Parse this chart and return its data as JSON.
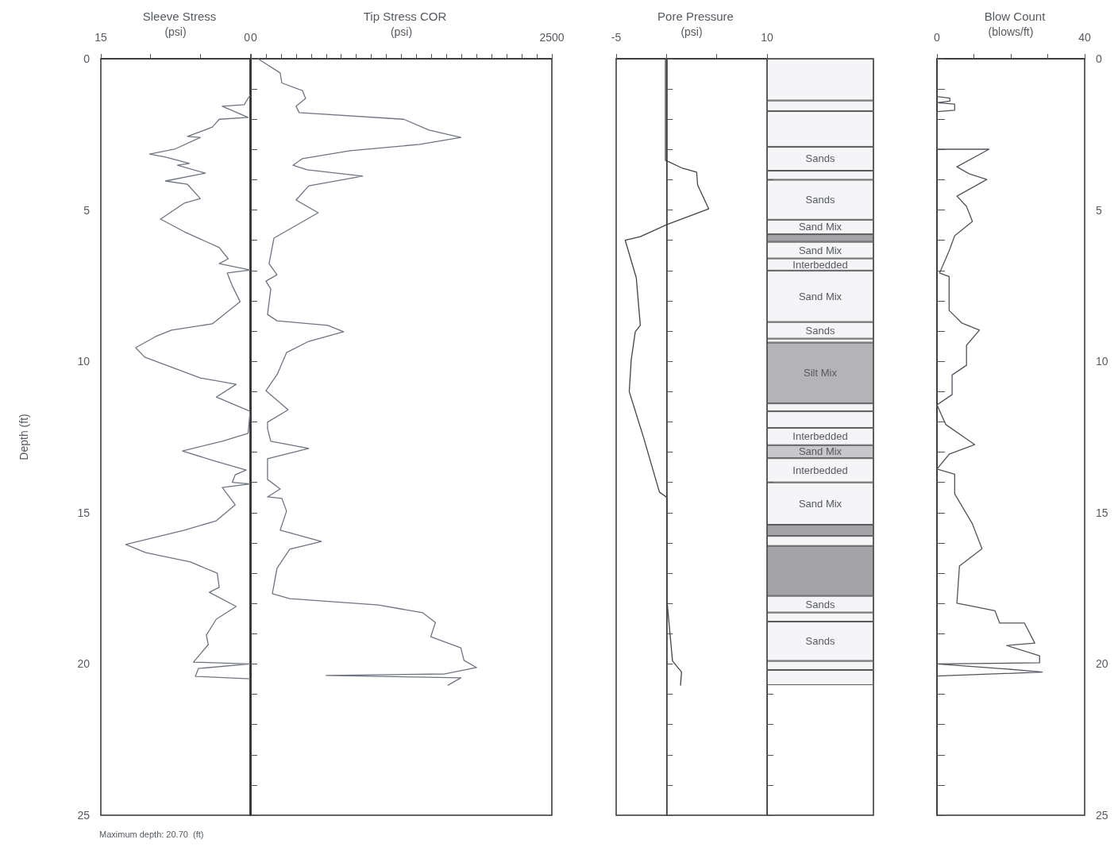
{
  "chart_data": [
    {
      "type": "line",
      "orientation": "horizontal",
      "title": "Sleeve Stress",
      "xlabel": "(psi)",
      "ylabel": "Depth (ft)",
      "color": "#6e7480",
      "marker": "none",
      "line_style": "solid",
      "x": [
        1.2,
        1.52,
        1.57,
        1.94,
        2.0,
        2.26,
        2.57,
        2.6,
        2.99,
        3.15,
        3.25,
        3.46,
        3.52,
        3.78,
        4.04,
        4.15,
        4.62,
        4.77,
        5.3,
        5.72,
        6.24,
        6.61,
        6.77,
        6.98,
        7.08,
        7.5,
        8.03,
        8.76,
        8.97,
        9.18,
        9.55,
        9.86,
        10.55,
        10.76,
        11.18,
        11.65,
        12.38,
        12.64,
        12.96,
        13.27,
        13.59,
        13.75,
        14.0,
        14.05,
        14.17,
        14.74,
        15.27,
        15.58,
        16.05,
        16.32,
        16.63,
        17.0,
        17.47,
        17.63,
        18.1,
        18.52,
        19.05,
        19.36,
        19.94,
        20.0,
        20.15,
        20.41,
        20.49
      ],
      "values": [
        0,
        0.6,
        2.8,
        0.2,
        3.1,
        3.8,
        6.3,
        5.0,
        7.6,
        10.1,
        8.5,
        6.1,
        7.3,
        4.5,
        8.5,
        6.3,
        5.0,
        6.6,
        9.0,
        6.6,
        3.1,
        2.2,
        3.1,
        0,
        2.3,
        1.8,
        1.0,
        3.8,
        7.9,
        9.5,
        11.5,
        10.6,
        5.0,
        1.4,
        3.4,
        0,
        0.2,
        2.8,
        6.8,
        3.8,
        0.4,
        1.5,
        1.8,
        0,
        2.8,
        1.5,
        3.4,
        6.6,
        12.5,
        10.5,
        6.0,
        3.3,
        3.1,
        4.1,
        1.4,
        3.4,
        4.4,
        4.2,
        5.7,
        0,
        5.2,
        5.5,
        0
      ],
      "xlim": [
        15,
        0
      ],
      "xticks": [
        15,
        {
          "value": 10,
          "label": null
        },
        {
          "value": 5,
          "label": null
        },
        0
      ],
      "ylim": [
        25,
        0
      ],
      "yticks": [
        0,
        {
          "value": 1,
          "label": null
        },
        {
          "value": 2,
          "label": null
        },
        {
          "value": 3,
          "label": null
        },
        {
          "value": 4,
          "label": null
        },
        5,
        {
          "value": 6,
          "label": null
        },
        {
          "value": 7,
          "label": null
        },
        {
          "value": 8,
          "label": null
        },
        {
          "value": 9,
          "label": null
        },
        10,
        {
          "value": 11,
          "label": null
        },
        {
          "value": 12,
          "label": null
        },
        {
          "value": 13,
          "label": null
        },
        {
          "value": 14,
          "label": null
        },
        15,
        {
          "value": 16,
          "label": null
        },
        {
          "value": 17,
          "label": null
        },
        {
          "value": 18,
          "label": null
        },
        {
          "value": 19,
          "label": null
        },
        20,
        {
          "value": 21,
          "label": null
        },
        {
          "value": 22,
          "label": null
        },
        {
          "value": 23,
          "label": null
        },
        {
          "value": 24,
          "label": null
        },
        25
      ],
      "annotations": [
        "Maximum depth: 20.70  (ft)"
      ]
    },
    {
      "type": "line",
      "orientation": "horizontal",
      "title": "Tip Stress COR",
      "xlabel": "(psi)",
      "color": "#6e7480",
      "marker": "none",
      "line_style": "solid",
      "tick_labels": "x",
      "x": [
        0,
        0.47,
        0.8,
        1.05,
        1.31,
        1.57,
        1.78,
        2.0,
        2.36,
        2.6,
        2.83,
        3.04,
        3.3,
        3.52,
        3.67,
        3.88,
        4.2,
        4.67,
        5.09,
        5.93,
        6.77,
        7.14,
        7.35,
        7.61,
        8.45,
        8.66,
        8.81,
        9.02,
        9.34,
        9.71,
        10.44,
        10.97,
        11.6,
        12.01,
        12.22,
        12.64,
        12.88,
        13.22,
        13.9,
        14.22,
        14.48,
        14.53,
        14.95,
        15.58,
        15.95,
        16.21,
        16.84,
        17.68,
        17.84,
        18.05,
        18.31,
        18.63,
        19.1,
        19.47,
        19.88,
        20.12,
        20.33,
        20.38,
        20.46,
        20.7
      ],
      "values": [
        59,
        243,
        257,
        428,
        454,
        375,
        401,
        1270,
        1480,
        1744,
        1402,
        823,
        428,
        349,
        467,
        928,
        480,
        375,
        559,
        191,
        151,
        217,
        125,
        165,
        138,
        217,
        638,
        770,
        480,
        296,
        217,
        125,
        309,
        138,
        138,
        165,
        480,
        138,
        138,
        243,
        138,
        257,
        296,
        243,
        586,
        322,
        217,
        178,
        322,
        1059,
        1428,
        1533,
        1494,
        1744,
        1770,
        1875,
        1612,
        625,
        1744,
        1638
      ],
      "xlim": [
        0,
        2500
      ],
      "xticks": [
        0,
        {
          "value": 125,
          "label": null
        },
        {
          "value": 250,
          "label": null
        },
        {
          "value": 375,
          "label": null
        },
        {
          "value": 500,
          "label": null
        },
        {
          "value": 625,
          "label": null
        },
        {
          "value": 750,
          "label": null
        },
        {
          "value": 875,
          "label": null
        },
        {
          "value": 1000,
          "label": null
        },
        {
          "value": 1125,
          "label": null
        },
        {
          "value": 1250,
          "label": null
        },
        {
          "value": 1375,
          "label": null
        },
        {
          "value": 1500,
          "label": null
        },
        {
          "value": 1625,
          "label": null
        },
        {
          "value": 1750,
          "label": null
        },
        {
          "value": 1875,
          "label": null
        },
        {
          "value": 2000,
          "label": null
        },
        {
          "value": 2125,
          "label": null
        },
        {
          "value": 2250,
          "label": null
        },
        {
          "value": 2375,
          "label": null
        },
        2500
      ],
      "ylim": [
        25,
        0
      ],
      "yticks": [
        0,
        {
          "value": 1,
          "label": null
        },
        {
          "value": 2,
          "label": null
        },
        {
          "value": 3,
          "label": null
        },
        {
          "value": 4,
          "label": null
        },
        5,
        {
          "value": 6,
          "label": null
        },
        {
          "value": 7,
          "label": null
        },
        {
          "value": 8,
          "label": null
        },
        {
          "value": 9,
          "label": null
        },
        10,
        {
          "value": 11,
          "label": null
        },
        {
          "value": 12,
          "label": null
        },
        {
          "value": 13,
          "label": null
        },
        {
          "value": 14,
          "label": null
        },
        15,
        {
          "value": 16,
          "label": null
        },
        {
          "value": 17,
          "label": null
        },
        {
          "value": 18,
          "label": null
        },
        {
          "value": 19,
          "label": null
        },
        20,
        {
          "value": 21,
          "label": null
        },
        {
          "value": 22,
          "label": null
        },
        {
          "value": 23,
          "label": null
        },
        {
          "value": 24,
          "label": null
        },
        25
      ]
    },
    {
      "type": "line",
      "orientation": "horizontal",
      "title": "Pore Pressure",
      "xlabel": "(psi)",
      "color": "#404448",
      "marker": "none",
      "line_style": "solid",
      "tick_labels": "x",
      "x": [
        0,
        3.36,
        3.4,
        3.62,
        3.75,
        4.17,
        4.96,
        5.48,
        5.88,
        6.0,
        7.24,
        8.81,
        9.02,
        9.94,
        11.0,
        12.49,
        14.32,
        14.5,
        17.9,
        19.9,
        20.27,
        20.7
      ],
      "values": [
        -0.1,
        -0.1,
        0.2,
        1.6,
        3.0,
        3.1,
        4.2,
        0.05,
        -2.6,
        -4.1,
        -3.0,
        -2.6,
        -3.1,
        -3.5,
        -3.7,
        -2.3,
        -0.7,
        0.05,
        0.05,
        0.6,
        1.5,
        1.4
      ],
      "ref_lines": [
        {
          "axis": "x",
          "value": 0,
          "color": "#404448"
        }
      ],
      "xlim": [
        -5,
        10
      ],
      "xticks": [
        -5,
        {
          "value": 0,
          "label": null
        },
        {
          "value": 5,
          "label": null
        },
        10
      ],
      "ylim": [
        25,
        0
      ],
      "yticks": [
        0,
        {
          "value": 1,
          "label": null
        },
        {
          "value": 2,
          "label": null
        },
        {
          "value": 3,
          "label": null
        },
        {
          "value": 4,
          "label": null
        },
        5,
        {
          "value": 6,
          "label": null
        },
        {
          "value": 7,
          "label": null
        },
        {
          "value": 8,
          "label": null
        },
        {
          "value": 9,
          "label": null
        },
        10,
        {
          "value": 11,
          "label": null
        },
        {
          "value": 12,
          "label": null
        },
        {
          "value": 13,
          "label": null
        },
        {
          "value": 14,
          "label": null
        },
        15,
        {
          "value": 16,
          "label": null
        },
        {
          "value": 17,
          "label": null
        },
        {
          "value": 18,
          "label": null
        },
        {
          "value": 19,
          "label": null
        },
        20,
        {
          "value": 21,
          "label": null
        },
        {
          "value": 22,
          "label": null
        },
        {
          "value": 23,
          "label": null
        },
        {
          "value": 24,
          "label": null
        },
        25
      ]
    },
    {
      "type": "bar",
      "stacked": true,
      "tick_labels": false,
      "categories": [
        null
      ],
      "ylim": [
        25,
        0
      ],
      "yticks": [
        0,
        {
          "value": 1,
          "label": null
        },
        {
          "value": 2,
          "label": null
        },
        {
          "value": 3,
          "label": null
        },
        {
          "value": 4,
          "label": null
        },
        5,
        {
          "value": 6,
          "label": null
        },
        {
          "value": 7,
          "label": null
        },
        {
          "value": 8,
          "label": null
        },
        {
          "value": 9,
          "label": null
        },
        10,
        {
          "value": 11,
          "label": null
        },
        {
          "value": 12,
          "label": null
        },
        {
          "value": 13,
          "label": null
        },
        {
          "value": 14,
          "label": null
        },
        15,
        {
          "value": 16,
          "label": null
        },
        {
          "value": 17,
          "label": null
        },
        {
          "value": 18,
          "label": null
        },
        {
          "value": 19,
          "label": null
        },
        20,
        {
          "value": 21,
          "label": null
        },
        {
          "value": 22,
          "label": null
        },
        {
          "value": 23,
          "label": null
        },
        {
          "value": 24,
          "label": null
        },
        25
      ],
      "series": [
        {
          "color": "#f5f5f8",
          "values": [
            1.38
          ]
        },
        {
          "color": "#f5f5f8",
          "values": [
            0.35
          ]
        },
        {
          "color": "#f5f5f8",
          "values": [
            1.18
          ]
        },
        {
          "name": "Sands",
          "color": "#f5f5f8",
          "values": [
            0.79
          ]
        },
        {
          "color": "#f5f5f8",
          "values": [
            0.3
          ]
        },
        {
          "name": "Sands",
          "color": "#f5f5f8",
          "values": [
            1.32
          ]
        },
        {
          "name": "Sand Mix",
          "color": "#f5f5f8",
          "values": [
            0.48
          ]
        },
        {
          "color": "#a4a4a8",
          "values": [
            0.25
          ]
        },
        {
          "name": "Sand Mix",
          "color": "#f5f5f8",
          "values": [
            0.55
          ]
        },
        {
          "name": "Interbedded",
          "color": "#f5f5f8",
          "values": [
            0.4
          ]
        },
        {
          "name": "Sand Mix",
          "color": "#f5f5f8",
          "values": [
            1.7
          ]
        },
        {
          "name": "Sands",
          "color": "#f5f5f8",
          "values": [
            0.55
          ]
        },
        {
          "color": "#f5f5f8",
          "values": [
            0.13
          ]
        },
        {
          "name": "Silt Mix",
          "color": "#b4b4b8",
          "values": [
            2.01
          ]
        },
        {
          "color": "#f5f5f8",
          "values": [
            0.26
          ]
        },
        {
          "color": "#f5f5f8",
          "values": [
            0.55
          ]
        },
        {
          "name": "Interbedded",
          "color": "#f5f5f8",
          "values": [
            0.57
          ]
        },
        {
          "name": "Sand Mix",
          "color": "#c8c8cc",
          "values": [
            0.43
          ]
        },
        {
          "name": "Interbedded",
          "color": "#f5f5f8",
          "values": [
            0.8
          ]
        },
        {
          "name": "Sand Mix",
          "color": "#f5f5f8",
          "values": [
            1.4
          ]
        },
        {
          "color": "#a4a4a8",
          "values": [
            0.37
          ]
        },
        {
          "color": "#f5f5f8",
          "values": [
            0.33
          ]
        },
        {
          "color": "#a4a4a8",
          "values": [
            1.65
          ]
        },
        {
          "name": "Sands",
          "color": "#f5f5f8",
          "values": [
            0.55
          ]
        },
        {
          "color": "#f5f5f8",
          "values": [
            0.3
          ]
        },
        {
          "name": "Sands",
          "color": "#f5f5f8",
          "values": [
            1.3
          ]
        },
        {
          "color": "#f5f5f8",
          "values": [
            0.3
          ]
        },
        {
          "color": "#f5f5f8",
          "values": [
            0.5
          ]
        }
      ]
    },
    {
      "type": "line",
      "orientation": "horizontal",
      "title": "Blow Count",
      "xlabel": "(blows/ft)",
      "color": "#50545c",
      "marker": "none",
      "line_style": "solid",
      "x": [
        1.25,
        1.3,
        1.4,
        1.45,
        1.5,
        1.7,
        1.75,
        2.99,
        2.99,
        3.57,
        3.8,
        3.99,
        4.54,
        4.88,
        5.38,
        5.85,
        6.35,
        7.08,
        7.2,
        8.32,
        8.73,
        8.97,
        9.47,
        10.13,
        10.45,
        11.1,
        11.44,
        12.09,
        12.75,
        13.07,
        13.56,
        13.73,
        14.38,
        15.37,
        16.19,
        16.76,
        17.99,
        18.24,
        18.65,
        18.65,
        19.31,
        19.39,
        19.73,
        19.96,
        20.0,
        20.2,
        20.27,
        20.4
      ],
      "values": [
        0,
        3.5,
        3.5,
        0,
        4.8,
        4.8,
        0,
        0,
        14.1,
        5.4,
        8.7,
        13.5,
        5.4,
        8.0,
        9.6,
        4.8,
        3.3,
        0.7,
        3.3,
        3.3,
        6.7,
        11.5,
        8.0,
        8.0,
        4.1,
        4.1,
        0,
        2.4,
        10.2,
        3.3,
        0,
        4.8,
        4.8,
        9.6,
        12.2,
        6.1,
        5.4,
        15.7,
        17.0,
        23.7,
        26.5,
        18.9,
        27.8,
        27.8,
        0,
        22.4,
        28.5,
        0
      ],
      "xlim": [
        0,
        40
      ],
      "xticks": [
        0,
        {
          "value": 10,
          "label": null
        },
        {
          "value": 20,
          "label": null
        },
        {
          "value": 30,
          "label": null
        },
        40
      ],
      "ylim": [
        25,
        0
      ],
      "yticks": [
        0,
        {
          "value": 1,
          "label": null
        },
        {
          "value": 2,
          "label": null
        },
        {
          "value": 3,
          "label": null
        },
        {
          "value": 4,
          "label": null
        },
        5,
        {
          "value": 6,
          "label": null
        },
        {
          "value": 7,
          "label": null
        },
        {
          "value": 8,
          "label": null
        },
        {
          "value": 9,
          "label": null
        },
        10,
        {
          "value": 11,
          "label": null
        },
        {
          "value": 12,
          "label": null
        },
        {
          "value": 13,
          "label": null
        },
        {
          "value": 14,
          "label": null
        },
        15,
        {
          "value": 16,
          "label": null
        },
        {
          "value": 17,
          "label": null
        },
        {
          "value": 18,
          "label": null
        },
        {
          "value": 19,
          "label": null
        },
        20,
        {
          "value": 21,
          "label": null
        },
        {
          "value": 22,
          "label": null
        },
        {
          "value": 23,
          "label": null
        },
        {
          "value": 24,
          "label": null
        },
        25
      ]
    }
  ]
}
